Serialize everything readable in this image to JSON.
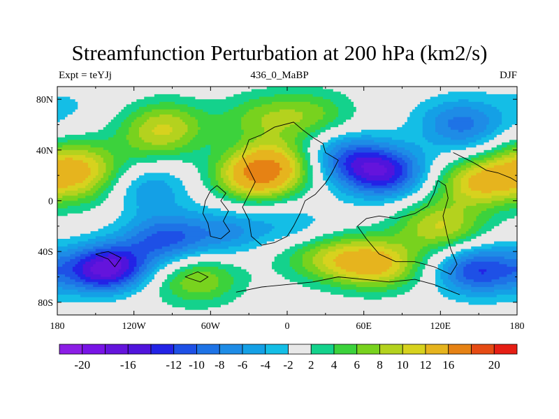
{
  "chart_data": {
    "type": "heatmap",
    "title": "Streamfunction Perturbation at 200 hPa (km2/s)",
    "left_label": "Expt = teYJj",
    "center_label": "436_0_MaBP",
    "right_label": "DJF",
    "xlim": [
      -180,
      180
    ],
    "ylim": [
      -90,
      90
    ],
    "x_ticks": [
      {
        "value": -180,
        "label": "180"
      },
      {
        "value": -120,
        "label": "120W"
      },
      {
        "value": -60,
        "label": "60W"
      },
      {
        "value": 0,
        "label": "0"
      },
      {
        "value": 60,
        "label": "60E"
      },
      {
        "value": 120,
        "label": "120E"
      },
      {
        "value": 180,
        "label": "180"
      }
    ],
    "y_ticks": [
      {
        "value": 80,
        "label": "80N"
      },
      {
        "value": 40,
        "label": "40N"
      },
      {
        "value": 0,
        "label": "0"
      },
      {
        "value": -40,
        "label": "40S"
      },
      {
        "value": -80,
        "label": "80S"
      }
    ],
    "contour_levels": [
      -20,
      -18,
      -16,
      -14,
      -12,
      -10,
      -8,
      -6,
      -4,
      -2,
      2,
      4,
      6,
      8,
      10,
      12,
      16,
      20
    ],
    "colorbar": {
      "colors": [
        "#8c1ee6",
        "#7814e6",
        "#6414dc",
        "#5014dc",
        "#2323e6",
        "#1e50e6",
        "#1e73e6",
        "#1e8ce6",
        "#14a0e6",
        "#14bee6",
        "#e8e8e8",
        "#14d28c",
        "#3cd23c",
        "#78d21e",
        "#b4d21e",
        "#d7d21e",
        "#e6b41e",
        "#e68214",
        "#e64b14",
        "#e61e14"
      ],
      "labels": [
        "-20",
        "-16",
        "-12",
        "-10",
        "-8",
        "-6",
        "-4",
        "-2",
        "2",
        "4",
        "6",
        "8",
        "10",
        "12",
        "16",
        "20"
      ]
    },
    "field_features": [
      {
        "lon": 150,
        "lat": 15,
        "amp": 12
      },
      {
        "lon": -25,
        "lat": 18,
        "amp": 12
      },
      {
        "lon": -10,
        "lat": 30,
        "amp": 10
      },
      {
        "lon": -160,
        "lat": 25,
        "amp": 8
      },
      {
        "lon": -160,
        "lat": 10,
        "amp": 4
      },
      {
        "lon": -95,
        "lat": 60,
        "amp": 8
      },
      {
        "lon": -105,
        "lat": 45,
        "amp": 4
      },
      {
        "lon": -20,
        "lat": 65,
        "amp": 6
      },
      {
        "lon": 20,
        "lat": 68,
        "amp": 6
      },
      {
        "lon": 175,
        "lat": 35,
        "amp": 6
      },
      {
        "lon": 120,
        "lat": -20,
        "amp": 10
      },
      {
        "lon": 72,
        "lat": -50,
        "amp": 12
      },
      {
        "lon": 35,
        "lat": -45,
        "amp": 8
      },
      {
        "lon": 0,
        "lat": -35,
        "amp": 4
      },
      {
        "lon": -70,
        "lat": -62,
        "amp": 8
      },
      {
        "lon": -130,
        "lat": -65,
        "amp": 4
      },
      {
        "lon": -140,
        "lat": -55,
        "amp": -20
      },
      {
        "lon": -95,
        "lat": -30,
        "amp": -10
      },
      {
        "lon": 75,
        "lat": 22,
        "amp": -14
      },
      {
        "lon": 45,
        "lat": 35,
        "amp": -8
      },
      {
        "lon": 135,
        "lat": 62,
        "amp": -8
      },
      {
        "lon": 150,
        "lat": -55,
        "amp": -12
      },
      {
        "lon": -110,
        "lat": 10,
        "amp": -6
      },
      {
        "lon": -45,
        "lat": -25,
        "amp": -6
      },
      {
        "lon": 5,
        "lat": -25,
        "amp": -6
      },
      {
        "lon": -170,
        "lat": 75,
        "amp": -2
      },
      {
        "lon": 155,
        "lat": 40,
        "amp": -4
      }
    ]
  }
}
